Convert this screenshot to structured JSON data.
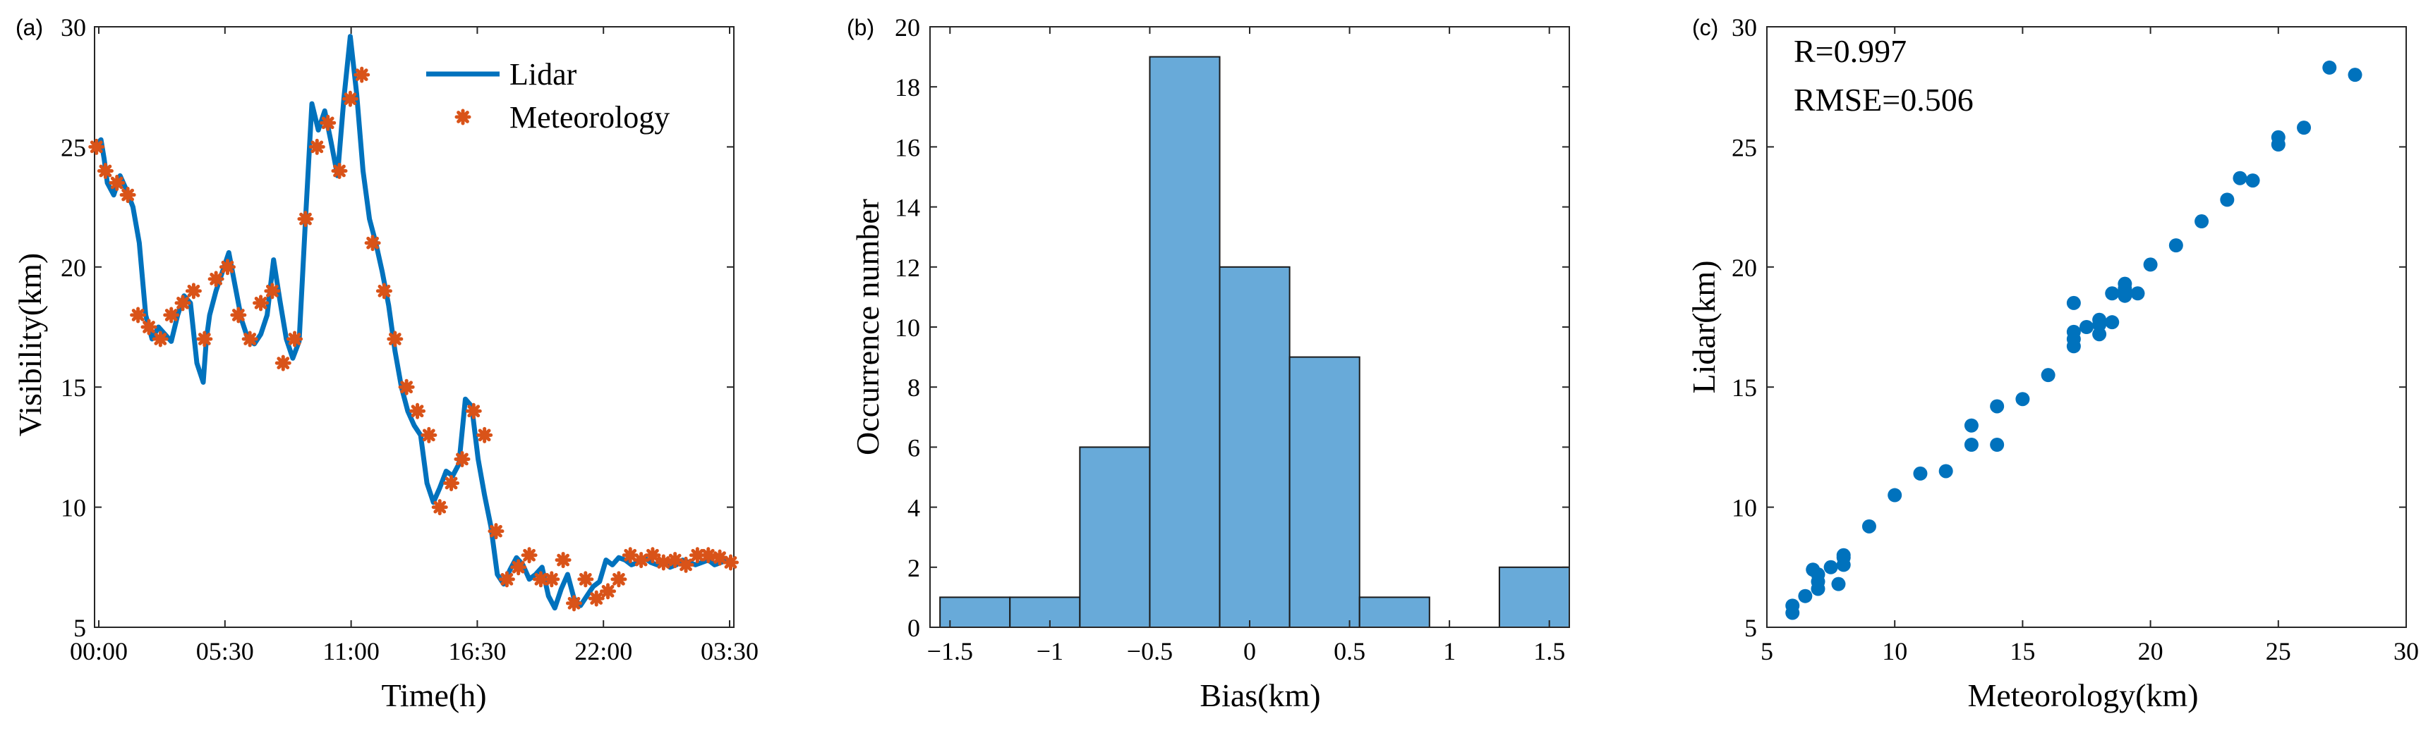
{
  "colors": {
    "line": "#0072BD",
    "marker": "#D95319",
    "bar": "#68AAD9",
    "dot": "#0072BD",
    "axis": "#262626"
  },
  "chart_data": [
    {
      "panel": "(a)",
      "type": "line",
      "xlabel": "Time(h)",
      "ylabel": "Visibility(km)",
      "xlim": [
        0,
        1
      ],
      "ylim": [
        5,
        30
      ],
      "yticks": [
        5,
        10,
        15,
        20,
        25,
        30
      ],
      "xticklabels": [
        "00:00",
        "05:30",
        "11:00",
        "16:30",
        "22:00",
        "03:30"
      ],
      "legend": [
        "Lidar",
        "Meteorology"
      ],
      "legend_position": "top-right",
      "series": [
        {
          "name": "Lidar",
          "x": [
            0,
            0.01,
            0.015,
            0.02,
            0.03,
            0.04,
            0.05,
            0.06,
            0.07,
            0.08,
            0.09,
            0.1,
            0.11,
            0.12,
            0.13,
            0.14,
            0.15,
            0.16,
            0.17,
            0.175,
            0.18,
            0.19,
            0.2,
            0.21,
            0.22,
            0.23,
            0.24,
            0.25,
            0.26,
            0.27,
            0.28,
            0.29,
            0.3,
            0.31,
            0.32,
            0.33,
            0.34,
            0.35,
            0.36,
            0.37,
            0.38,
            0.39,
            0.4,
            0.41,
            0.42,
            0.43,
            0.44,
            0.45,
            0.46,
            0.47,
            0.48,
            0.49,
            0.5,
            0.51,
            0.52,
            0.53,
            0.54,
            0.55,
            0.56,
            0.57,
            0.58,
            0.59,
            0.6,
            0.61,
            0.62,
            0.63,
            0.64,
            0.65,
            0.66,
            0.67,
            0.68,
            0.69,
            0.7,
            0.71,
            0.72,
            0.73,
            0.74,
            0.75,
            0.76,
            0.77,
            0.78,
            0.79,
            0.8,
            0.81,
            0.82,
            0.83,
            0.84,
            0.85,
            0.86,
            0.87,
            0.88,
            0.89,
            0.9,
            0.91,
            0.92,
            0.93,
            0.94,
            0.95,
            0.96,
            0.97,
            0.98,
            0.99,
            1.0
          ],
          "y": [
            25.0,
            25.3,
            24.5,
            23.5,
            23.0,
            23.8,
            23.2,
            22.5,
            21.0,
            18.0,
            17.0,
            17.5,
            17.2,
            16.9,
            18.0,
            18.8,
            18.5,
            16.0,
            15.2,
            17.0,
            18.0,
            19.0,
            19.8,
            20.6,
            19.2,
            17.8,
            17.0,
            16.8,
            17.2,
            18.0,
            20.3,
            18.6,
            17.0,
            16.2,
            16.9,
            22.0,
            26.8,
            25.7,
            26.5,
            25.2,
            23.8,
            27.0,
            29.6,
            27.2,
            24.0,
            22.0,
            21.0,
            19.8,
            18.4,
            16.5,
            15.0,
            14.0,
            13.4,
            13.0,
            11.0,
            10.2,
            10.8,
            11.5,
            11.3,
            11.8,
            14.5,
            14.2,
            12.0,
            10.5,
            9.2,
            7.2,
            6.8,
            7.4,
            7.9,
            7.6,
            7.0,
            7.2,
            7.5,
            6.3,
            5.8,
            6.6,
            7.2,
            6.2,
            5.9,
            6.3,
            6.7,
            6.9,
            7.8,
            7.6,
            7.9,
            7.8,
            7.6,
            7.7,
            7.9,
            7.7,
            7.6,
            7.8,
            7.5,
            7.6,
            7.8,
            7.7,
            7.6,
            7.7,
            7.8,
            7.6,
            7.7,
            7.8,
            7.6
          ]
        },
        {
          "name": "Meteorology",
          "x": [
            0.003,
            0.017,
            0.035,
            0.052,
            0.068,
            0.085,
            0.103,
            0.12,
            0.138,
            0.155,
            0.172,
            0.19,
            0.208,
            0.225,
            0.243,
            0.26,
            0.278,
            0.295,
            0.313,
            0.33,
            0.348,
            0.365,
            0.383,
            0.4,
            0.418,
            0.435,
            0.453,
            0.47,
            0.488,
            0.505,
            0.523,
            0.54,
            0.558,
            0.575,
            0.593,
            0.61,
            0.628,
            0.645,
            0.663,
            0.68,
            0.698,
            0.715,
            0.733,
            0.75,
            0.768,
            0.785,
            0.803,
            0.82,
            0.838,
            0.855,
            0.873,
            0.89,
            0.908,
            0.925,
            0.943,
            0.96,
            0.978,
            0.995
          ],
          "y": [
            25,
            24,
            23.5,
            23,
            18,
            17.5,
            17,
            18,
            18.5,
            19,
            17,
            19.5,
            20,
            18,
            17,
            18.5,
            19,
            16,
            17,
            22,
            25,
            26,
            24,
            27,
            28,
            21,
            19,
            17,
            15,
            14,
            13,
            10,
            11,
            12,
            14,
            13,
            9,
            7,
            7.5,
            8,
            7,
            7,
            7.8,
            6,
            7,
            6.2,
            6.5,
            7,
            8,
            7.8,
            8,
            7.7,
            7.8,
            7.6,
            8,
            8,
            7.9,
            7.7
          ]
        }
      ]
    },
    {
      "panel": "(b)",
      "type": "bar",
      "xlabel": "Bias(km)",
      "ylabel": "Occurrence number",
      "xlim": [
        -1.6,
        1.6
      ],
      "ylim": [
        0,
        20
      ],
      "yticks": [
        0,
        2,
        4,
        6,
        8,
        10,
        12,
        14,
        16,
        18,
        20
      ],
      "xticks": [
        -1.5,
        -1,
        -0.5,
        0,
        0.5,
        1,
        1.5
      ],
      "xticklabels": [
        "−1.5",
        "−1",
        "−0.5",
        "0",
        "0.5",
        "1",
        "1.5"
      ],
      "bin_edges": [
        -1.55,
        -1.2,
        -0.85,
        -0.5,
        -0.15,
        0.2,
        0.55,
        0.9,
        1.25,
        1.6
      ],
      "values": [
        1,
        1,
        6,
        19,
        12,
        9,
        1,
        0,
        2
      ]
    },
    {
      "panel": "(c)",
      "type": "scatter",
      "xlabel": "Meteorology(km)",
      "ylabel": "Lidar(km)",
      "xlim": [
        5,
        30
      ],
      "ylim": [
        5,
        30
      ],
      "xticks": [
        5,
        10,
        15,
        20,
        25,
        30
      ],
      "yticks": [
        5,
        10,
        15,
        20,
        25,
        30
      ],
      "annotations": [
        "R=0.997",
        "RMSE=0.506"
      ],
      "x": [
        6,
        6,
        6.5,
        6.8,
        7,
        7,
        7,
        7.5,
        7.8,
        8,
        8,
        8,
        9,
        10,
        11,
        12,
        13,
        13,
        14,
        14,
        15,
        16,
        17,
        17,
        17,
        17,
        17.5,
        18,
        18,
        18,
        18.5,
        18.5,
        19,
        19,
        19,
        19.5,
        20,
        21,
        22,
        23,
        23.5,
        24,
        25,
        25,
        26,
        27,
        28
      ],
      "y": [
        5.6,
        5.9,
        6.3,
        7.4,
        6.6,
        6.9,
        7.2,
        7.5,
        6.8,
        7.6,
        7.9,
        8.0,
        9.2,
        10.5,
        11.4,
        11.5,
        12.6,
        13.4,
        12.6,
        14.2,
        14.5,
        15.5,
        16.7,
        17.0,
        17.3,
        18.5,
        17.5,
        17.2,
        17.6,
        17.8,
        17.7,
        18.9,
        18.8,
        19.1,
        19.3,
        18.9,
        20.1,
        20.9,
        21.9,
        22.8,
        23.7,
        23.6,
        25.1,
        25.4,
        25.8,
        28.3,
        28.0
      ]
    }
  ]
}
